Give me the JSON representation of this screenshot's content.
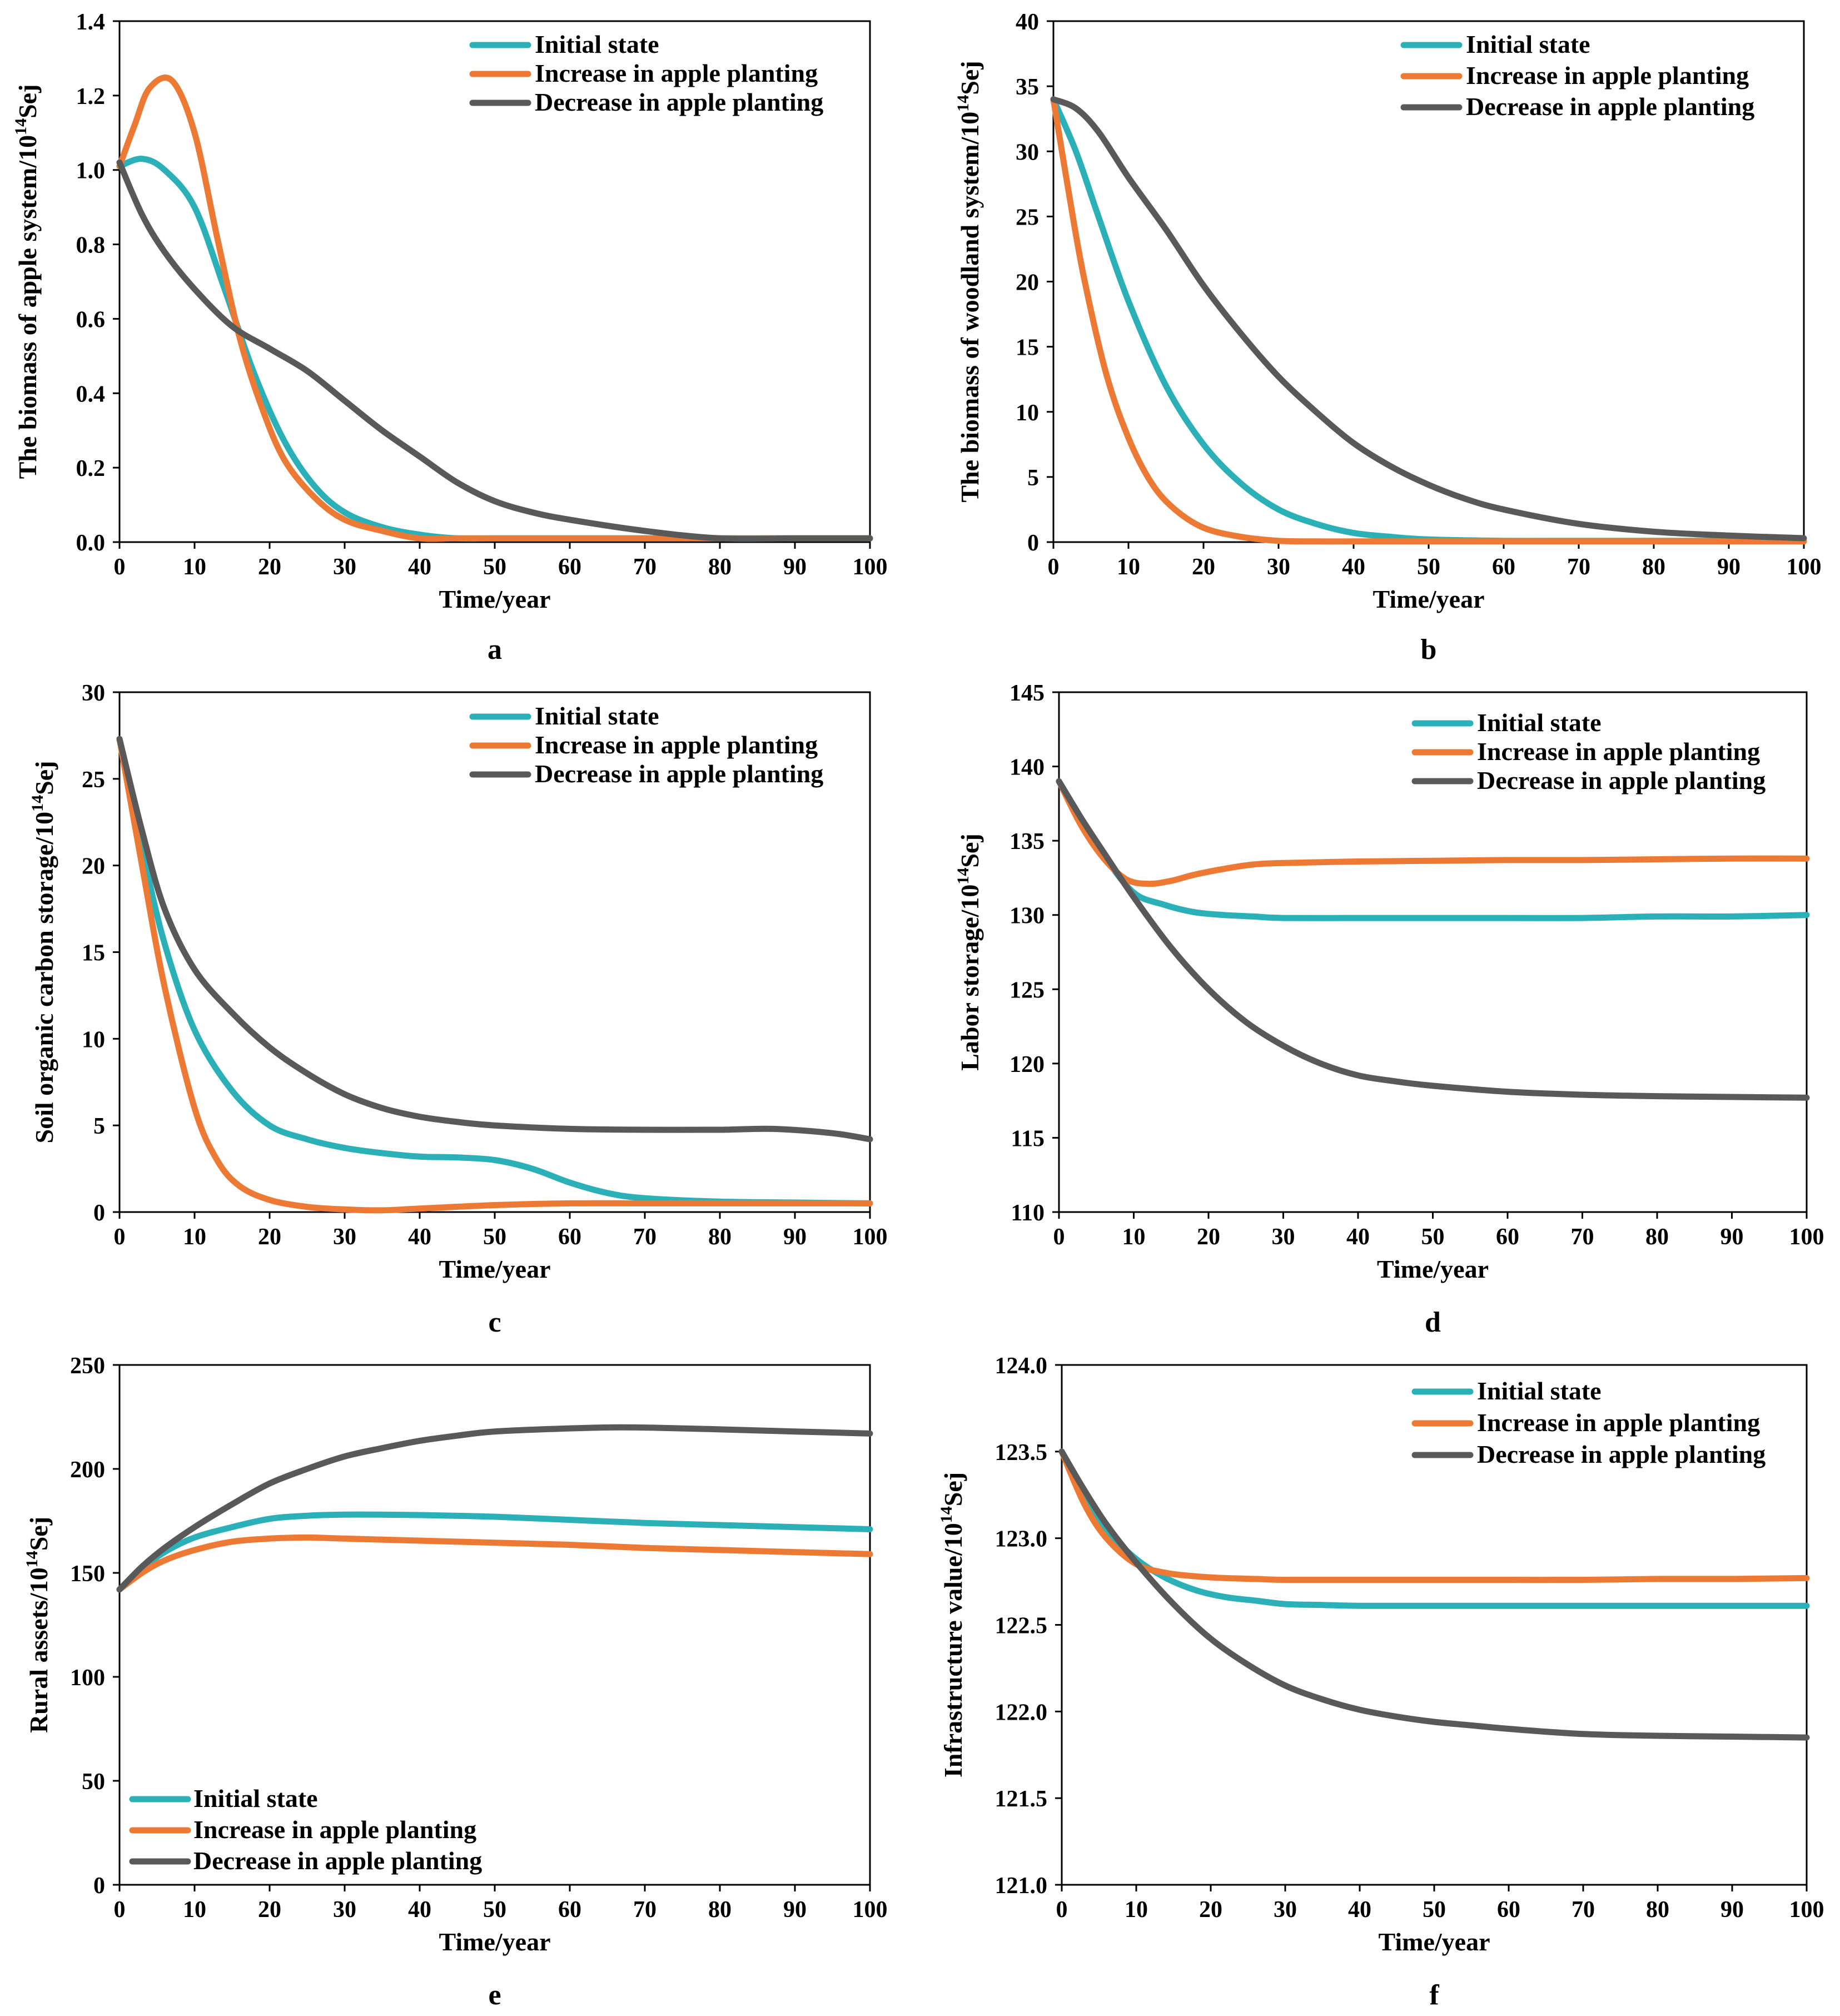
{
  "colors": {
    "initial": "#2bb0b8",
    "increase": "#ec7a35",
    "decrease": "#595959"
  },
  "chart_data": [
    {
      "type": "line",
      "panel_label": "a",
      "xlabel": "Time/year",
      "ylabel_main": "The biomass  of apple system/10",
      "ylabel_sup": "14",
      "ylabel_unit": "Sej",
      "xlim": [
        0,
        100
      ],
      "ylim": [
        0,
        1.4
      ],
      "xticks": [
        "0",
        "10",
        "20",
        "30",
        "40",
        "50",
        "60",
        "70",
        "80",
        "90",
        "100"
      ],
      "yticks": [
        "0.0",
        "0.2",
        "0.4",
        "0.6",
        "0.8",
        "1.0",
        "1.2",
        "1.4"
      ],
      "legend_position": "top-right",
      "series": [
        {
          "name": "Initial state",
          "color_key": "initial",
          "x": [
            0,
            3,
            6,
            10,
            14,
            18,
            22,
            26,
            30,
            35,
            40,
            45,
            50,
            60,
            70,
            80,
            90,
            100
          ],
          "y": [
            1.01,
            1.03,
            1.0,
            0.9,
            0.68,
            0.45,
            0.27,
            0.15,
            0.08,
            0.04,
            0.02,
            0.01,
            0.01,
            0.01,
            0.01,
            0.01,
            0.01,
            0.01
          ]
        },
        {
          "name": "Increase in apple planting",
          "color_key": "increase",
          "x": [
            0,
            2,
            4,
            7,
            10,
            13,
            16,
            19,
            22,
            26,
            30,
            35,
            40,
            45,
            50,
            60,
            70,
            80,
            90,
            100
          ],
          "y": [
            1.01,
            1.12,
            1.22,
            1.24,
            1.1,
            0.82,
            0.55,
            0.36,
            0.22,
            0.12,
            0.06,
            0.03,
            0.01,
            0.01,
            0.01,
            0.01,
            0.01,
            0.01,
            0.01,
            0.01
          ]
        },
        {
          "name": "Decrease in apple planting",
          "color_key": "decrease",
          "x": [
            0,
            3,
            6,
            10,
            15,
            20,
            25,
            30,
            35,
            40,
            45,
            50,
            55,
            60,
            70,
            80,
            90,
            100
          ],
          "y": [
            1.02,
            0.88,
            0.78,
            0.68,
            0.58,
            0.52,
            0.46,
            0.38,
            0.3,
            0.23,
            0.16,
            0.11,
            0.08,
            0.06,
            0.03,
            0.01,
            0.01,
            0.01
          ]
        }
      ]
    },
    {
      "type": "line",
      "panel_label": "b",
      "xlabel": "Time/year",
      "ylabel_main": "The biomass  of woodland  system/10",
      "ylabel_sup": "14",
      "ylabel_unit": "Sej",
      "xlim": [
        0,
        100
      ],
      "ylim": [
        0,
        40
      ],
      "xticks": [
        "0",
        "10",
        "20",
        "30",
        "40",
        "50",
        "60",
        "70",
        "80",
        "90",
        "100"
      ],
      "yticks": [
        "0",
        "5",
        "10",
        "15",
        "20",
        "25",
        "30",
        "35",
        "40"
      ],
      "legend_position": "top-right",
      "series": [
        {
          "name": "Initial state",
          "color_key": "initial",
          "x": [
            0,
            3,
            6,
            10,
            15,
            20,
            25,
            30,
            35,
            40,
            45,
            50,
            60,
            70,
            80,
            90,
            100
          ],
          "y": [
            34,
            30,
            25,
            18.5,
            12,
            7.5,
            4.5,
            2.5,
            1.4,
            0.7,
            0.4,
            0.2,
            0.1,
            0.1,
            0.1,
            0.1,
            0.1
          ]
        },
        {
          "name": "Increase in apple planting",
          "color_key": "increase",
          "x": [
            0,
            2,
            4,
            7,
            10,
            13,
            16,
            20,
            25,
            30,
            35,
            40,
            50,
            60,
            70,
            80,
            90,
            100
          ],
          "y": [
            34,
            27,
            20.5,
            13,
            8,
            4.6,
            2.6,
            1.1,
            0.4,
            0.1,
            0.05,
            0.05,
            0.05,
            0.05,
            0.05,
            0.05,
            0.05,
            0.05
          ]
        },
        {
          "name": "Decrease in apple planting",
          "color_key": "decrease",
          "x": [
            0,
            3,
            6,
            10,
            15,
            20,
            25,
            30,
            35,
            40,
            45,
            50,
            55,
            60,
            70,
            80,
            90,
            100
          ],
          "y": [
            34,
            33.3,
            31.5,
            28,
            24,
            19.7,
            16,
            12.7,
            10,
            7.6,
            5.8,
            4.4,
            3.3,
            2.5,
            1.4,
            0.8,
            0.5,
            0.3
          ]
        }
      ]
    },
    {
      "type": "line",
      "panel_label": "c",
      "xlabel": "Time/year",
      "ylabel_main": "Soil organic  carbon storage/10",
      "ylabel_sup": "14",
      "ylabel_unit": "Sej",
      "xlim": [
        0,
        100
      ],
      "ylim": [
        0,
        30
      ],
      "xticks": [
        "0",
        "10",
        "20",
        "30",
        "40",
        "50",
        "60",
        "70",
        "80",
        "90",
        "100"
      ],
      "yticks": [
        "0",
        "5",
        "10",
        "15",
        "20",
        "25",
        "30"
      ],
      "legend_position": "top-right",
      "series": [
        {
          "name": "Initial state",
          "color_key": "initial",
          "x": [
            0,
            3,
            6,
            10,
            15,
            20,
            25,
            30,
            35,
            40,
            45,
            50,
            55,
            60,
            65,
            70,
            80,
            90,
            100
          ],
          "y": [
            27.3,
            21,
            15.5,
            10.5,
            7,
            5,
            4.2,
            3.7,
            3.4,
            3.2,
            3.15,
            3,
            2.5,
            1.7,
            1.1,
            0.8,
            0.6,
            0.55,
            0.5
          ]
        },
        {
          "name": "Increase in apple planting",
          "color_key": "increase",
          "x": [
            0,
            3,
            6,
            10,
            13,
            16,
            20,
            25,
            30,
            35,
            40,
            50,
            60,
            70,
            80,
            90,
            100
          ],
          "y": [
            27.3,
            20,
            13,
            6,
            3,
            1.5,
            0.7,
            0.3,
            0.15,
            0.1,
            0.2,
            0.4,
            0.5,
            0.5,
            0.5,
            0.5,
            0.5
          ]
        },
        {
          "name": "Decrease in apple planting",
          "color_key": "decrease",
          "x": [
            0,
            3,
            6,
            10,
            15,
            20,
            25,
            30,
            35,
            40,
            45,
            50,
            60,
            70,
            80,
            87,
            95,
            100
          ],
          "y": [
            27.3,
            22,
            17.5,
            14,
            11.5,
            9.5,
            8,
            6.8,
            6,
            5.5,
            5.2,
            5,
            4.8,
            4.75,
            4.75,
            4.8,
            4.55,
            4.2
          ]
        }
      ]
    },
    {
      "type": "line",
      "panel_label": "d",
      "xlabel": "Time/year",
      "ylabel_main": "Labor storage/10",
      "ylabel_sup": "14",
      "ylabel_unit": "Sej",
      "xlim": [
        0,
        100
      ],
      "ylim": [
        110,
        145
      ],
      "xticks": [
        "0",
        "10",
        "20",
        "30",
        "40",
        "50",
        "60",
        "70",
        "80",
        "90",
        "100"
      ],
      "yticks": [
        "110",
        "115",
        "120",
        "125",
        "130",
        "135",
        "140",
        "145"
      ],
      "legend_position": "top-right",
      "series": [
        {
          "name": "Initial state",
          "color_key": "initial",
          "x": [
            0,
            3,
            6,
            10,
            14,
            18,
            22,
            26,
            30,
            40,
            50,
            60,
            70,
            80,
            90,
            100
          ],
          "y": [
            139,
            136.5,
            134,
            131.5,
            130.7,
            130.2,
            130,
            129.9,
            129.8,
            129.8,
            129.8,
            129.8,
            129.8,
            129.9,
            129.9,
            130
          ]
        },
        {
          "name": "Increase in apple planting",
          "color_key": "increase",
          "x": [
            0,
            3,
            6,
            9,
            12,
            15,
            18,
            22,
            26,
            30,
            40,
            50,
            60,
            70,
            80,
            90,
            100
          ],
          "y": [
            139,
            136,
            133.8,
            132.4,
            132.1,
            132.3,
            132.7,
            133.1,
            133.4,
            133.5,
            133.6,
            133.65,
            133.7,
            133.7,
            133.75,
            133.8,
            133.8
          ]
        },
        {
          "name": "Decrease in apple planting",
          "color_key": "decrease",
          "x": [
            0,
            3,
            6,
            10,
            15,
            20,
            25,
            30,
            35,
            40,
            45,
            50,
            60,
            70,
            80,
            90,
            100
          ],
          "y": [
            139,
            136.5,
            134.2,
            131.2,
            127.8,
            125,
            122.8,
            121.2,
            120,
            119.2,
            118.8,
            118.5,
            118.1,
            117.9,
            117.8,
            117.75,
            117.7
          ]
        }
      ]
    },
    {
      "type": "line",
      "panel_label": "e",
      "xlabel": "Time/year",
      "ylabel_main": "Rural  assets/10",
      "ylabel_sup": "14",
      "ylabel_unit": "Sej",
      "xlim": [
        0,
        100
      ],
      "ylim": [
        0,
        250
      ],
      "xticks": [
        "0",
        "10",
        "20",
        "30",
        "40",
        "50",
        "60",
        "70",
        "80",
        "90",
        "100"
      ],
      "yticks": [
        "0",
        "50",
        "100",
        "150",
        "200",
        "250"
      ],
      "legend_position": "bottom-left",
      "series": [
        {
          "name": "Initial state",
          "color_key": "initial",
          "x": [
            0,
            3,
            6,
            10,
            15,
            20,
            25,
            30,
            35,
            40,
            50,
            60,
            70,
            80,
            90,
            100
          ],
          "y": [
            142,
            152,
            160,
            167,
            172,
            176,
            177.5,
            178,
            178,
            177.8,
            177,
            175.5,
            174,
            173,
            172,
            171
          ]
        },
        {
          "name": "Increase in apple planting",
          "color_key": "increase",
          "x": [
            0,
            3,
            6,
            10,
            15,
            20,
            25,
            30,
            40,
            50,
            60,
            70,
            80,
            90,
            100
          ],
          "y": [
            142,
            150,
            156,
            161,
            165,
            166.5,
            167,
            166.5,
            165.5,
            164.5,
            163.5,
            162,
            161,
            160,
            159
          ]
        },
        {
          "name": "Decrease in apple planting",
          "color_key": "decrease",
          "x": [
            0,
            3,
            6,
            10,
            15,
            20,
            25,
            30,
            35,
            40,
            45,
            50,
            60,
            67,
            75,
            80,
            90,
            100
          ],
          "y": [
            142,
            153,
            162,
            172,
            183,
            193,
            200,
            206,
            210,
            213.5,
            216,
            218,
            219.5,
            220,
            219.5,
            219,
            218,
            217
          ]
        }
      ]
    },
    {
      "type": "line",
      "panel_label": "f",
      "xlabel": "Time/year",
      "ylabel_main": "Infrastructure  value/10",
      "ylabel_sup": "14",
      "ylabel_unit": "Sej",
      "xlim": [
        0,
        100
      ],
      "ylim": [
        121,
        124
      ],
      "xticks": [
        "0",
        "10",
        "20",
        "30",
        "40",
        "50",
        "60",
        "70",
        "80",
        "90",
        "100"
      ],
      "yticks": [
        "121.0",
        "121.5",
        "122.0",
        "122.5",
        "123.0",
        "123.5",
        "124.0"
      ],
      "legend_position": "top-right",
      "series": [
        {
          "name": "Initial state",
          "color_key": "initial",
          "x": [
            0,
            3,
            6,
            10,
            14,
            18,
            22,
            26,
            30,
            35,
            40,
            50,
            60,
            70,
            80,
            90,
            100
          ],
          "y": [
            123.5,
            123.25,
            123.05,
            122.88,
            122.77,
            122.7,
            122.66,
            122.64,
            122.62,
            122.615,
            122.61,
            122.61,
            122.61,
            122.61,
            122.61,
            122.61,
            122.61
          ]
        },
        {
          "name": "Increase in apple planting",
          "color_key": "increase",
          "x": [
            0,
            3,
            6,
            10,
            14,
            18,
            22,
            26,
            30,
            40,
            50,
            60,
            70,
            80,
            90,
            100
          ],
          "y": [
            123.5,
            123.2,
            123.0,
            122.85,
            122.8,
            122.78,
            122.77,
            122.765,
            122.76,
            122.76,
            122.76,
            122.76,
            122.76,
            122.765,
            122.765,
            122.77
          ]
        },
        {
          "name": "Decrease in apple planting",
          "color_key": "decrease",
          "x": [
            0,
            3,
            6,
            10,
            15,
            20,
            25,
            30,
            35,
            40,
            45,
            50,
            55,
            60,
            70,
            80,
            90,
            100
          ],
          "y": [
            123.5,
            123.28,
            123.08,
            122.86,
            122.62,
            122.42,
            122.27,
            122.15,
            122.07,
            122.01,
            121.97,
            121.94,
            121.92,
            121.9,
            121.87,
            121.86,
            121.855,
            121.85
          ]
        }
      ]
    }
  ]
}
